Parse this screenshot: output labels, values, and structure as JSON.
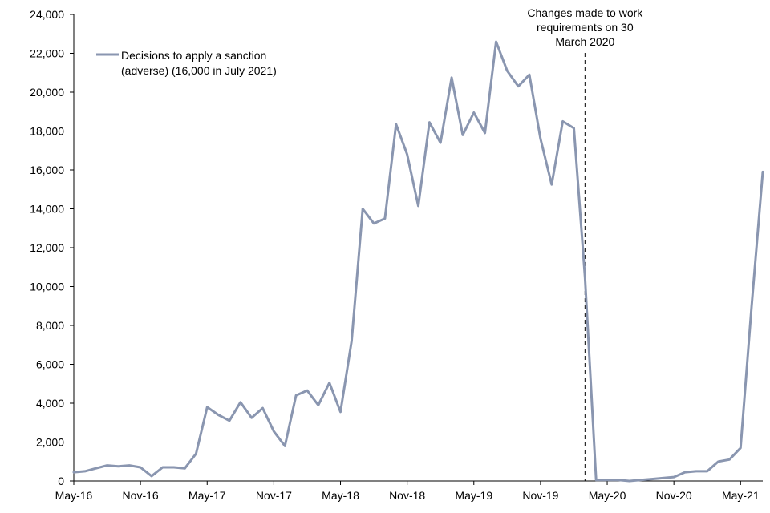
{
  "chart_data": {
    "type": "line",
    "title": "",
    "xlabel": "",
    "ylabel": "",
    "ylim": [
      0,
      24000
    ],
    "yticks": [
      "0",
      "2,000",
      "4,000",
      "6,000",
      "8,000",
      "10,000",
      "12,000",
      "14,000",
      "16,000",
      "18,000",
      "20,000",
      "22,000",
      "24,000"
    ],
    "xtick_labels": [
      "May-16",
      "Nov-16",
      "May-17",
      "Nov-17",
      "May-18",
      "Nov-18",
      "May-19",
      "Nov-19",
      "May-20",
      "Nov-20",
      "May-21"
    ],
    "x_start": "May-16",
    "x_end": "Jul-21",
    "series": [
      {
        "name": "Decisions to apply a sanction (adverse) (16,000 in July 2021)",
        "color": "#8a96b0",
        "values": [
          450,
          500,
          650,
          800,
          750,
          800,
          700,
          250,
          700,
          700,
          650,
          1400,
          3800,
          3400,
          3100,
          4050,
          3250,
          3750,
          2550,
          1800,
          4400,
          4650,
          3900,
          5050,
          3550,
          7200,
          14000,
          13250,
          13500,
          18350,
          16800,
          14150,
          18450,
          17400,
          20750,
          17800,
          18950,
          17900,
          22600,
          21100,
          20300,
          20900,
          17600,
          15250,
          18500,
          18150,
          10500,
          50,
          50,
          50,
          0,
          50,
          100,
          150,
          200,
          450,
          500,
          500,
          1000,
          1100,
          1700,
          9000,
          15900
        ]
      }
    ],
    "legend": {
      "line1": "Decisions to apply a sanction",
      "line2": "(adverse) (16,000 in July 2021)",
      "placement": "top-left"
    },
    "annotation": {
      "lines": [
        "Changes made to work",
        "requirements  on 30",
        "March 2020"
      ],
      "at_month": "Mar-20"
    }
  }
}
